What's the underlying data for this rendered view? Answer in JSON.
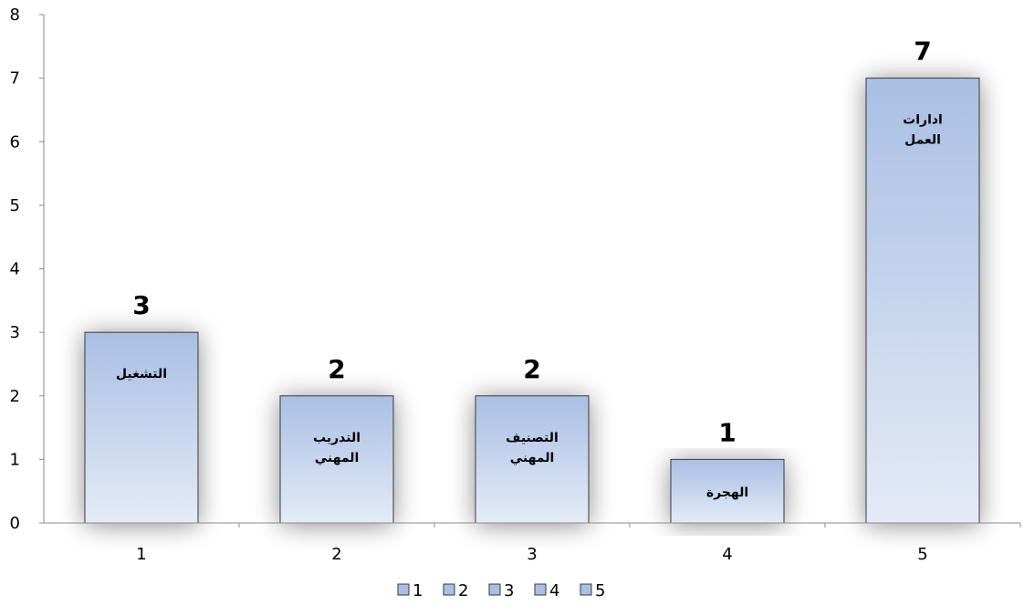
{
  "chart_data": {
    "type": "bar",
    "categories": [
      "1",
      "2",
      "3",
      "4",
      "5"
    ],
    "values": [
      3,
      2,
      2,
      1,
      7
    ],
    "bar_labels": [
      [
        "التشغيل"
      ],
      [
        "التدريب",
        "المهني"
      ],
      [
        "التصنيف",
        "المهني"
      ],
      [
        "الهجرة"
      ],
      [
        "ادارات",
        "العمل"
      ]
    ],
    "ylim": [
      0,
      8
    ],
    "yticks": [
      "0",
      "1",
      "2",
      "3",
      "4",
      "5",
      "6",
      "7",
      "8"
    ],
    "legend": [
      "1",
      "2",
      "3",
      "4",
      "5"
    ],
    "legend_position": "bottom",
    "grid": false,
    "colors": {
      "bar_top": "#a9bfe3",
      "bar_bottom": "#e4ebf7",
      "bar_stroke": "#3a3a3a",
      "axis": "#8a8a8a"
    }
  }
}
